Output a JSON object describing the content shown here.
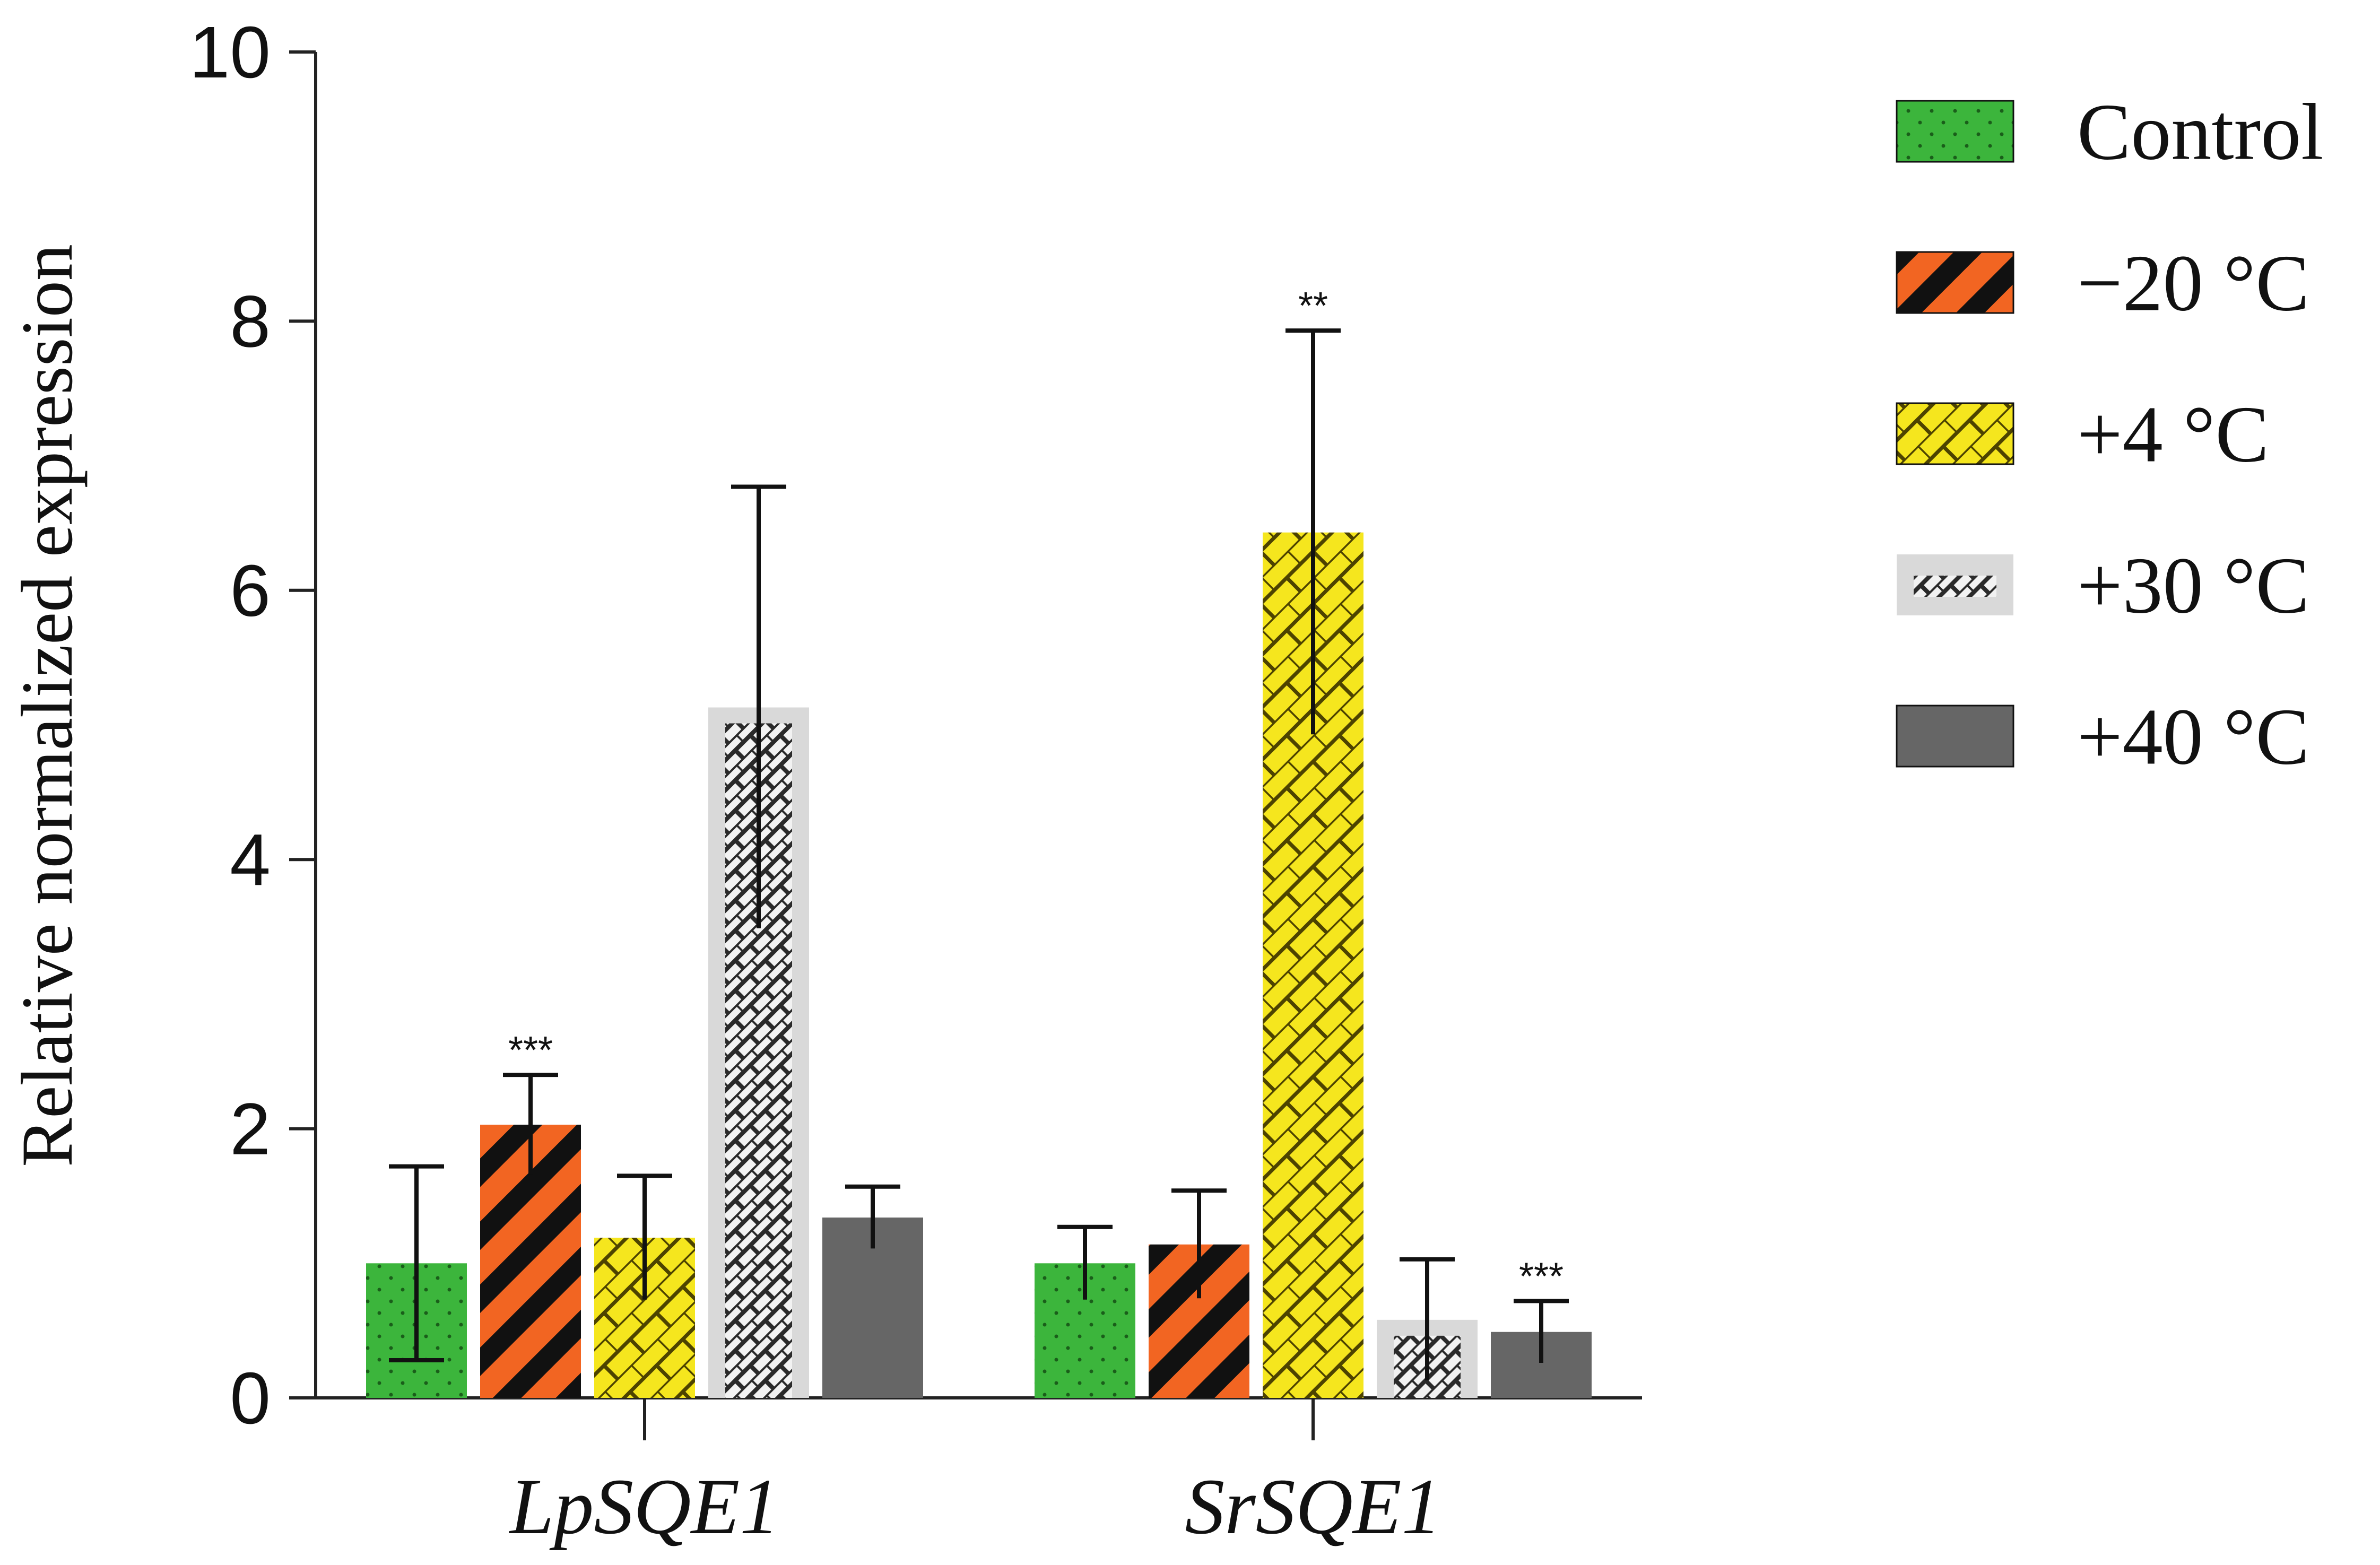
{
  "chart_data": {
    "type": "bar",
    "title": "",
    "xlabel": "",
    "ylabel": "Relative normalized expression",
    "ylim": [
      0,
      10
    ],
    "yticks": [
      0,
      2,
      4,
      6,
      8,
      10
    ],
    "categories": [
      "LpSQE1",
      "SrSQE1"
    ],
    "series": [
      {
        "name": "Control",
        "color": "#3cb53c",
        "pattern": "dots",
        "values": [
          1.0,
          1.0
        ],
        "errors": [
          0.72,
          0.27
        ],
        "significance": [
          "",
          ""
        ]
      },
      {
        "name": "−20 °C",
        "color": "#f26522",
        "pattern": "stripes",
        "values": [
          2.03,
          1.14
        ],
        "errors": [
          0.37,
          0.4
        ],
        "significance": [
          "***",
          ""
        ]
      },
      {
        "name": "+4 °C",
        "color": "#f5e61e",
        "pattern": "bricks",
        "values": [
          1.19,
          6.43
        ],
        "errors": [
          0.46,
          1.5
        ],
        "significance": [
          "",
          "**"
        ]
      },
      {
        "name": "+30 °C",
        "color": "#d4d4d4",
        "pattern": "dark-bricks",
        "values": [
          5.13,
          0.58
        ],
        "errors": [
          1.64,
          0.45
        ],
        "significance": [
          "",
          ""
        ]
      },
      {
        "name": "+40 °C",
        "color": "#666666",
        "pattern": "solid",
        "values": [
          1.34,
          0.49
        ],
        "errors": [
          0.23,
          0.23
        ],
        "significance": [
          "",
          "***"
        ]
      }
    ],
    "legend_position": "top-right",
    "grid": false
  }
}
